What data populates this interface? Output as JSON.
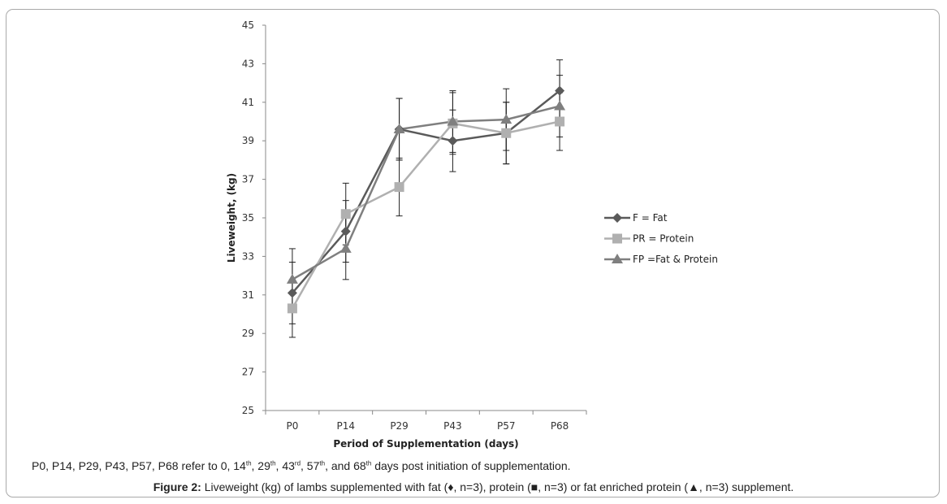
{
  "chart_data": {
    "type": "line",
    "xlabel": "Period of Supplementation (days)",
    "ylabel": "Liveweight, (kg)",
    "ylim": [
      25,
      45
    ],
    "yticks": [
      25,
      27,
      29,
      31,
      33,
      35,
      37,
      39,
      41,
      43,
      45
    ],
    "categories": [
      "P0",
      "P14",
      "P29",
      "P43",
      "P57",
      "P68"
    ],
    "legend_position": "right",
    "series": [
      {
        "name": "F = Fat",
        "marker": "diamond",
        "color": "#5a5a5a",
        "values": [
          31.1,
          34.3,
          39.6,
          39.0,
          39.4,
          41.6
        ],
        "errors": [
          1.6,
          1.6,
          1.6,
          1.6,
          1.6,
          1.6
        ]
      },
      {
        "name": "PR = Protein",
        "marker": "square",
        "color": "#b0b0b0",
        "values": [
          30.3,
          35.2,
          36.6,
          39.9,
          39.4,
          40.0
        ],
        "errors": [
          1.5,
          1.6,
          1.5,
          1.6,
          1.6,
          1.5
        ]
      },
      {
        "name": "FP =Fat & Protein",
        "marker": "triangle",
        "color": "#7f7f7f",
        "values": [
          31.8,
          33.4,
          39.6,
          40.0,
          40.1,
          40.8
        ],
        "errors": [
          1.6,
          1.6,
          1.6,
          1.6,
          1.6,
          1.6
        ]
      }
    ]
  },
  "note": {
    "prefix": "P0, P14, P29, P43, P57, P68 refer to 0, 14",
    "sup1": "th",
    "mid1": ", 29",
    "sup2": "th",
    "mid2": ", 43",
    "sup3": "rd",
    "mid3": ", 57",
    "sup4": "th",
    "mid4": ", and 68",
    "sup5": "th",
    "suffix": " days post initiation of supplementation."
  },
  "caption": {
    "label": "Figure 2:",
    "text": " Liveweight (kg) of lambs supplemented with fat (♦, n=3), protein (■, n=3) or fat enriched protein (▲, n=3) supplement."
  }
}
